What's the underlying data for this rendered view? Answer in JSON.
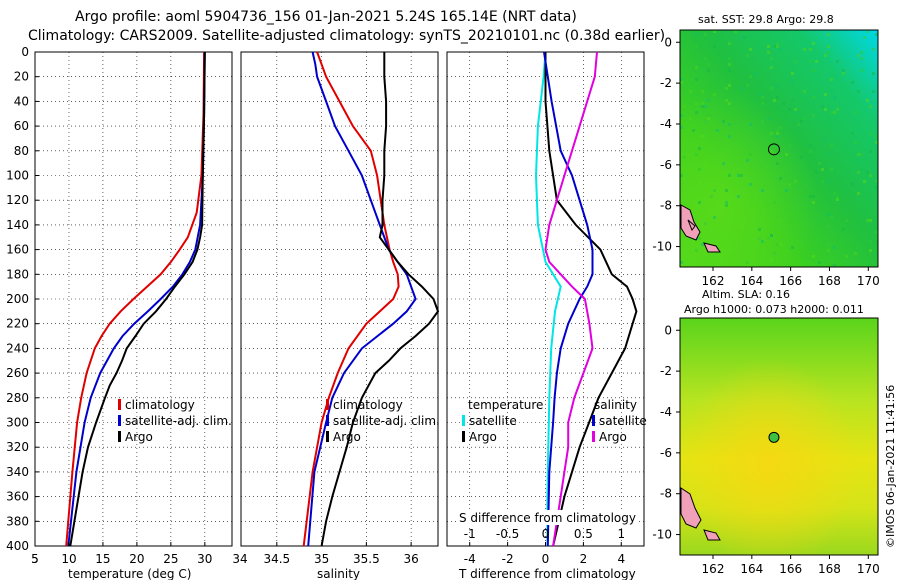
{
  "title": {
    "line1": "Argo profile: aoml 5904736_156 01-Jan-2021 5.24S 165.14E (NRT data)",
    "line2": "Climatology: CARS2009. Satellite-adjusted climatology: synTS_20210101.nc (0.38d earlier)"
  },
  "timestamp": "©IMOS 06-Jan-2021 11:41:56",
  "colors": {
    "climatology": "#e00000",
    "satellite": "#0000cc",
    "argo": "#000000",
    "t_sat": "#00e5e5",
    "s_sat": "#e000e0"
  },
  "chart_data": [
    {
      "type": "line",
      "name": "temperature",
      "xlabel": "temperature (deg C)",
      "xlim": [
        5,
        34
      ],
      "ylim": [
        400,
        0
      ],
      "xticks": [
        5,
        10,
        15,
        20,
        25,
        30
      ],
      "xtick_labels": [
        "5",
        "10",
        "15",
        "20",
        "25",
        "30"
      ],
      "yticks": [
        0,
        20,
        40,
        60,
        80,
        100,
        120,
        140,
        160,
        180,
        200,
        220,
        240,
        260,
        280,
        300,
        320,
        340,
        360,
        380,
        400
      ],
      "legend": [
        "climatology",
        "satellite-adj. clim.",
        "Argo"
      ],
      "series": [
        {
          "name": "climatology",
          "color": "#e00000",
          "depth": [
            0,
            50,
            100,
            130,
            150,
            160,
            170,
            180,
            190,
            200,
            210,
            220,
            230,
            240,
            260,
            280,
            300,
            340,
            400
          ],
          "values": [
            29.9,
            29.8,
            29.5,
            28.8,
            27.5,
            26.3,
            25.0,
            23.5,
            21.5,
            19.5,
            17.6,
            16.0,
            14.8,
            13.8,
            12.6,
            11.8,
            11.2,
            10.5,
            9.6
          ]
        },
        {
          "name": "satellite-adj. clim.",
          "color": "#0000cc",
          "depth": [
            0,
            50,
            100,
            140,
            160,
            170,
            180,
            190,
            200,
            210,
            220,
            230,
            240,
            260,
            280,
            300,
            340,
            400
          ],
          "values": [
            30.0,
            29.9,
            29.7,
            29.3,
            28.6,
            27.8,
            26.7,
            25.3,
            23.5,
            21.6,
            19.6,
            17.9,
            16.6,
            14.6,
            13.2,
            12.3,
            11.1,
            9.9
          ]
        },
        {
          "name": "Argo",
          "color": "#000000",
          "depth": [
            0,
            50,
            100,
            140,
            150,
            160,
            170,
            180,
            190,
            200,
            210,
            220,
            230,
            240,
            250,
            260,
            270,
            280,
            300,
            320,
            340,
            360,
            380,
            400
          ],
          "values": [
            30.0,
            29.9,
            29.7,
            29.6,
            29.3,
            28.9,
            28.2,
            27.0,
            25.6,
            24.3,
            22.8,
            21.0,
            19.8,
            18.5,
            17.8,
            17.0,
            16.0,
            15.3,
            14.0,
            12.8,
            12.0,
            11.4,
            10.8,
            10.2
          ]
        }
      ]
    },
    {
      "type": "line",
      "name": "salinity",
      "xlabel": "salinity",
      "xlim": [
        34.1,
        36.3
      ],
      "ylim": [
        400,
        0
      ],
      "xticks": [
        34.5,
        35,
        35.5,
        36
      ],
      "xtick_labels": [
        "34.5",
        "35",
        "35.5",
        "36"
      ],
      "legend": [
        "climatology",
        "satellite-adj. clim.",
        "Argo"
      ],
      "series": [
        {
          "name": "climatology",
          "color": "#e00000",
          "depth": [
            0,
            10,
            20,
            40,
            60,
            80,
            100,
            120,
            140,
            160,
            170,
            180,
            190,
            200,
            210,
            220,
            240,
            260,
            280,
            300,
            340,
            400
          ],
          "values": [
            34.95,
            35.0,
            35.05,
            35.2,
            35.35,
            35.55,
            35.62,
            35.66,
            35.7,
            35.76,
            35.8,
            35.85,
            35.86,
            35.8,
            35.65,
            35.5,
            35.3,
            35.18,
            35.08,
            35.0,
            34.9,
            34.8
          ]
        },
        {
          "name": "satellite-adj. clim.",
          "color": "#0000cc",
          "depth": [
            0,
            10,
            20,
            40,
            60,
            80,
            100,
            120,
            140,
            160,
            170,
            180,
            190,
            200,
            210,
            220,
            240,
            260,
            280,
            300,
            340,
            400
          ],
          "values": [
            34.9,
            34.93,
            34.95,
            35.05,
            35.15,
            35.3,
            35.45,
            35.55,
            35.65,
            35.75,
            35.85,
            35.95,
            36.0,
            36.05,
            35.95,
            35.8,
            35.45,
            35.25,
            35.12,
            35.05,
            34.92,
            34.85
          ]
        },
        {
          "name": "Argo",
          "color": "#000000",
          "depth": [
            0,
            20,
            40,
            60,
            80,
            100,
            120,
            140,
            150,
            160,
            170,
            180,
            190,
            200,
            210,
            220,
            230,
            240,
            250,
            260,
            280,
            300,
            320,
            340,
            360,
            380,
            400
          ],
          "values": [
            35.7,
            35.7,
            35.72,
            35.72,
            35.7,
            35.7,
            35.68,
            35.68,
            35.65,
            35.75,
            35.85,
            35.97,
            36.12,
            36.25,
            36.3,
            36.2,
            36.05,
            35.88,
            35.75,
            35.6,
            35.45,
            35.35,
            35.28,
            35.2,
            35.12,
            35.05,
            35.0
          ]
        }
      ]
    },
    {
      "type": "line",
      "name": "difference from climatology",
      "xlabel": "T difference from climatology",
      "xlabel_top": "S difference from climatology",
      "xlim": [
        -5.2,
        5.2
      ],
      "ylim": [
        400,
        0
      ],
      "xticks": [
        -4,
        -2,
        0,
        2,
        4
      ],
      "xtick_labels": [
        "-4",
        "-2",
        "0",
        "2",
        "4"
      ],
      "s_xticks": [
        -1,
        -0.5,
        0,
        0.5,
        1
      ],
      "s_xtick_labels": [
        "-1",
        "-0.5",
        "0",
        "0.5",
        "1"
      ],
      "legend_titles": [
        "temperature",
        "salinity"
      ],
      "legend": [
        "satellite",
        "Argo"
      ],
      "series": [
        {
          "name": "T satellite",
          "color": "#00e5e5",
          "depth": [
            0,
            20,
            60,
            100,
            140,
            170,
            190,
            210,
            240,
            280,
            320,
            360,
            400
          ],
          "values": [
            0.0,
            -0.1,
            -0.4,
            -0.5,
            -0.4,
            0.0,
            0.8,
            0.5,
            0.3,
            0.2,
            0.15,
            0.1,
            0.1
          ]
        },
        {
          "name": "T Argo",
          "color": "#000000",
          "depth": [
            0,
            40,
            80,
            120,
            140,
            160,
            170,
            180,
            190,
            200,
            210,
            220,
            240,
            260,
            280,
            300,
            320,
            340,
            360,
            380,
            400
          ],
          "values": [
            0.0,
            0.0,
            0.2,
            0.6,
            1.6,
            2.9,
            3.2,
            3.5,
            4.3,
            4.6,
            4.8,
            4.6,
            4.2,
            3.5,
            2.8,
            2.3,
            1.8,
            1.4,
            1.0,
            0.7,
            0.4
          ]
        },
        {
          "name": "S satellite",
          "color": "#0000cc",
          "depth": [
            0,
            40,
            80,
            100,
            120,
            140,
            160,
            180,
            190,
            200,
            220,
            240,
            260,
            280,
            300,
            340,
            400
          ],
          "values": [
            -0.02,
            0.08,
            0.2,
            0.35,
            0.45,
            0.55,
            0.62,
            0.62,
            0.55,
            0.45,
            0.3,
            0.2,
            0.15,
            0.12,
            0.1,
            0.05,
            0.03
          ]
        },
        {
          "name": "S Argo",
          "color": "#e000e0",
          "depth": [
            0,
            20,
            60,
            100,
            140,
            160,
            170,
            180,
            190,
            200,
            220,
            240,
            260,
            280,
            300,
            320,
            340,
            360,
            380,
            400
          ],
          "values": [
            0.68,
            0.65,
            0.45,
            0.25,
            0.05,
            0.0,
            0.05,
            0.2,
            0.35,
            0.52,
            0.58,
            0.62,
            0.5,
            0.38,
            0.3,
            0.3,
            0.25,
            0.2,
            0.15,
            0.1
          ]
        }
      ]
    },
    {
      "type": "heatmap",
      "name": "sat. SST map",
      "title": "sat. SST: 29.8  Argo: 29.8",
      "xlim": [
        160.3,
        170.5
      ],
      "ylim": [
        -11,
        0.6
      ],
      "xticks": [
        162,
        164,
        166,
        168,
        170
      ],
      "yticks": [
        0,
        -2,
        -4,
        -6,
        -8,
        -10
      ],
      "marker": [
        165.14,
        -5.24
      ]
    },
    {
      "type": "heatmap",
      "name": "altimetry SLA map",
      "title": "Altim. SLA: 0.16",
      "subtitle": "Argo h1000: 0.073 h2000: 0.011",
      "xlim": [
        160.3,
        170.5
      ],
      "ylim": [
        -11,
        0.6
      ],
      "xticks": [
        162,
        164,
        166,
        168,
        170
      ],
      "yticks": [
        0,
        -2,
        -4,
        -6,
        -8,
        -10
      ],
      "marker": [
        165.14,
        -5.24
      ]
    }
  ]
}
